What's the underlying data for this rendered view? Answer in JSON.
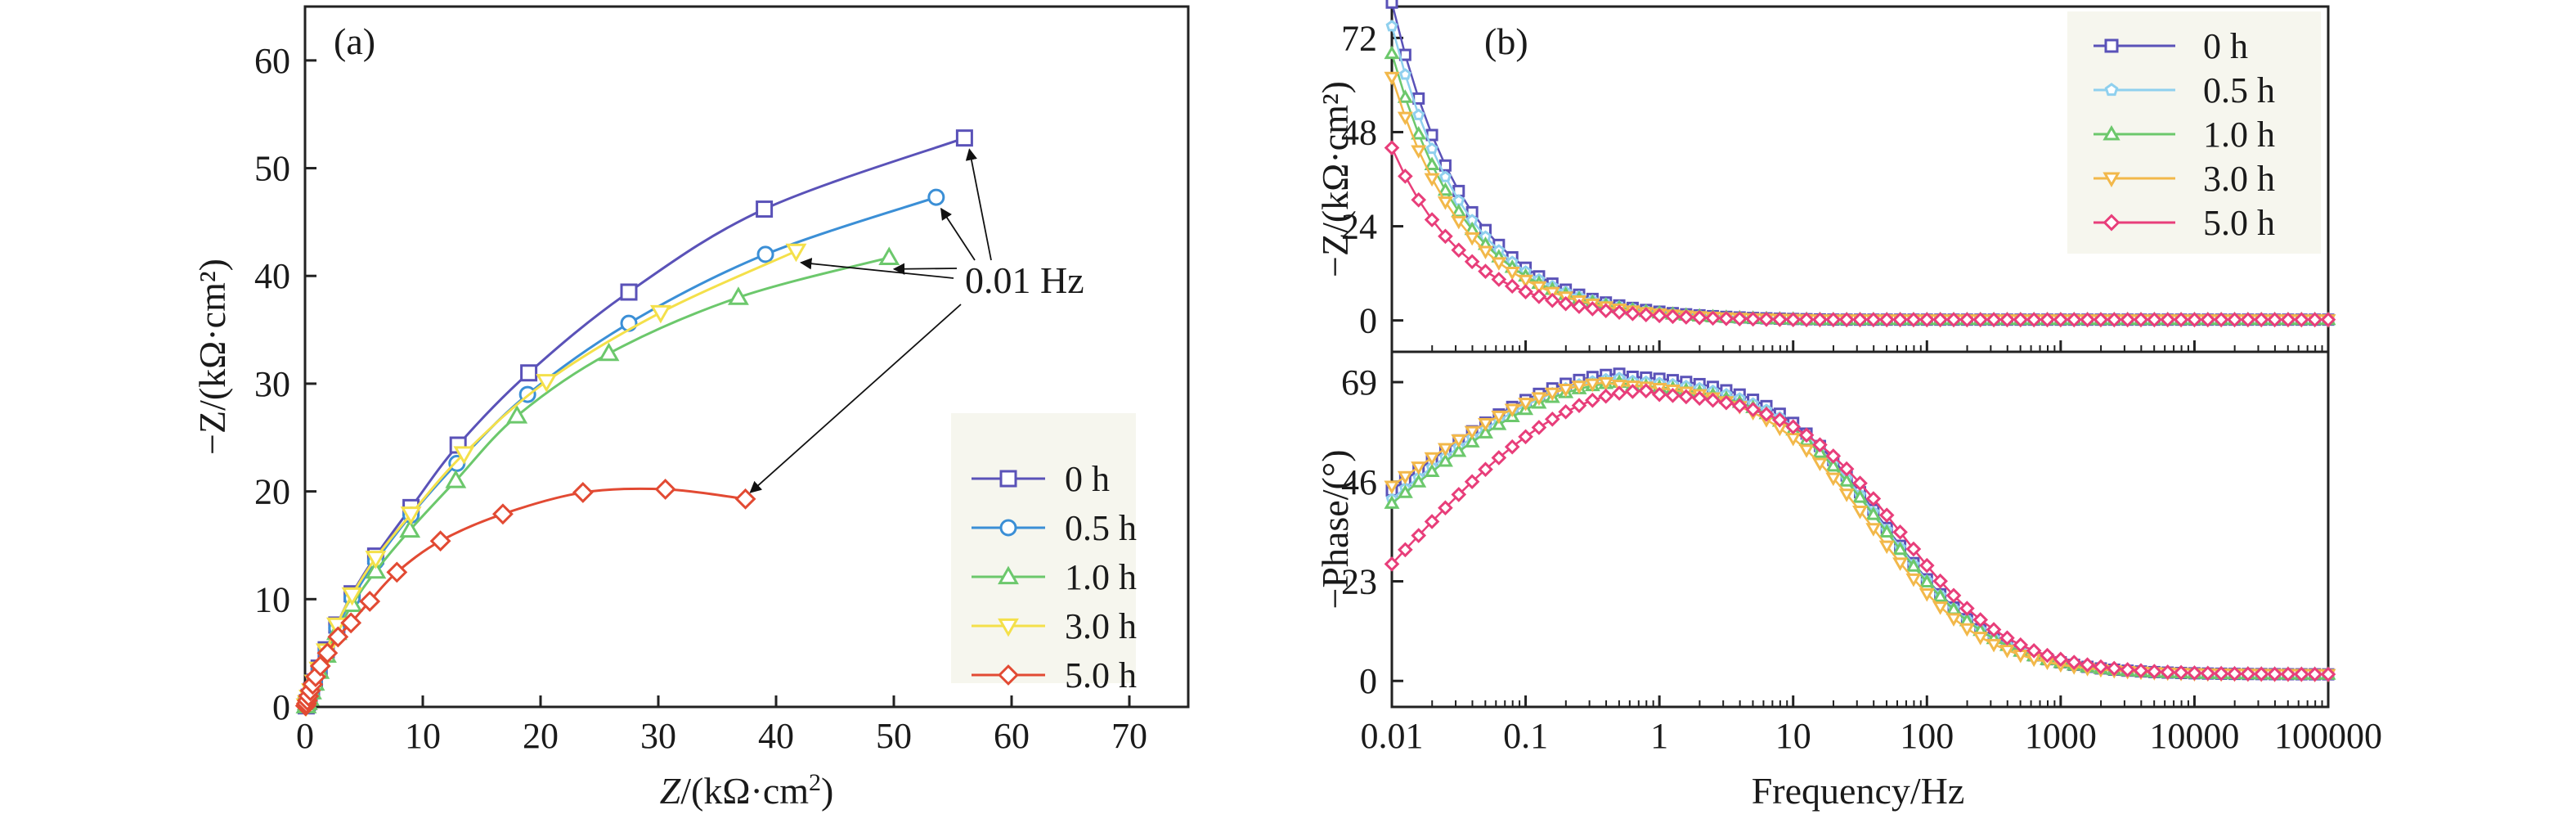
{
  "chart_data": [
    {
      "panel": "(a)",
      "type": "scatter",
      "xlabel_italic": "Z",
      "xlabel_rest": "/(kΩ·cm",
      "xlabel_sup": "2",
      "xlabel_end": ")",
      "ylabel": "−Z/(kΩ·cm²)",
      "xlim": [
        0,
        75
      ],
      "ylim": [
        0,
        65
      ],
      "xticks": [
        0,
        10,
        20,
        30,
        40,
        50,
        60,
        70
      ],
      "yticks": [
        0,
        10,
        20,
        30,
        40,
        50,
        60
      ],
      "annotation": {
        "text": "0.01 Hz"
      },
      "series": [
        {
          "name": "0 h",
          "color": "#5a52b8",
          "marker": "square",
          "points": [
            [
              0.1,
              0.1
            ],
            [
              0.2,
              0.4
            ],
            [
              0.35,
              0.9
            ],
            [
              0.55,
              1.5
            ],
            [
              0.8,
              2.3
            ],
            [
              1.2,
              3.6
            ],
            [
              1.8,
              5.3
            ],
            [
              2.7,
              7.6
            ],
            [
              4,
              10.5
            ],
            [
              6,
              14
            ],
            [
              9,
              18.5
            ],
            [
              13,
              24.3
            ],
            [
              19,
              31
            ],
            [
              27.5,
              38.5
            ],
            [
              39,
              46.2
            ],
            [
              56,
              52.8
            ]
          ]
        },
        {
          "name": "0.5 h",
          "color": "#3b8fd6",
          "marker": "circle",
          "points": [
            [
              0.1,
              0.1
            ],
            [
              0.2,
              0.4
            ],
            [
              0.35,
              0.9
            ],
            [
              0.55,
              1.5
            ],
            [
              0.8,
              2.3
            ],
            [
              1.2,
              3.5
            ],
            [
              1.8,
              5.1
            ],
            [
              2.7,
              7.3
            ],
            [
              4,
              10.1
            ],
            [
              6,
              13.5
            ],
            [
              9,
              17.8
            ],
            [
              12.9,
              22.6
            ],
            [
              18.9,
              29
            ],
            [
              27.5,
              35.6
            ],
            [
              39.1,
              42
            ],
            [
              53.6,
              47.3
            ]
          ]
        },
        {
          "name": "1.0 h",
          "color": "#6cc86c",
          "marker": "triangle-up",
          "points": [
            [
              0.1,
              0.1
            ],
            [
              0.2,
              0.4
            ],
            [
              0.35,
              0.8
            ],
            [
              0.55,
              1.4
            ],
            [
              0.8,
              2.2
            ],
            [
              1.2,
              3.3
            ],
            [
              1.8,
              4.8
            ],
            [
              2.7,
              6.9
            ],
            [
              4,
              9.5
            ],
            [
              6,
              12.6
            ],
            [
              8.9,
              16.4
            ],
            [
              12.8,
              21
            ],
            [
              18,
              27
            ],
            [
              25.8,
              32.8
            ],
            [
              36.8,
              38
            ],
            [
              49.6,
              41.7
            ]
          ]
        },
        {
          "name": "3.0 h",
          "color": "#f4e04a",
          "marker": "triangle-down",
          "points": [
            [
              0.1,
              0.1
            ],
            [
              0.2,
              0.4
            ],
            [
              0.35,
              0.9
            ],
            [
              0.55,
              1.5
            ],
            [
              0.8,
              2.3
            ],
            [
              1.2,
              3.5
            ],
            [
              1.8,
              5.2
            ],
            [
              2.7,
              7.6
            ],
            [
              4,
              10.4
            ],
            [
              6,
              13.8
            ],
            [
              9,
              17.9
            ],
            [
              13.5,
              23.5
            ],
            [
              20.5,
              30.2
            ],
            [
              30.2,
              36.6
            ],
            [
              41.7,
              42.3
            ]
          ]
        },
        {
          "name": "5.0 h",
          "color": "#e24a33",
          "marker": "diamond",
          "points": [
            [
              0.05,
              0.1
            ],
            [
              0.12,
              0.3
            ],
            [
              0.2,
              0.6
            ],
            [
              0.3,
              1
            ],
            [
              0.45,
              1.5
            ],
            [
              0.65,
              2.1
            ],
            [
              0.9,
              2.8
            ],
            [
              1.3,
              3.8
            ],
            [
              1.9,
              5
            ],
            [
              2.8,
              6.5
            ],
            [
              3.9,
              7.8
            ],
            [
              5.5,
              9.8
            ],
            [
              7.8,
              12.5
            ],
            [
              11.5,
              15.4
            ],
            [
              16.8,
              17.9
            ],
            [
              23.6,
              19.9
            ],
            [
              30.6,
              20.2
            ],
            [
              37.4,
              19.3
            ]
          ]
        }
      ]
    },
    {
      "panel": "(b)",
      "type": "line",
      "xlabel": "Frequency/Hz",
      "ylabel_top": "−Z/(kΩ·cm²)",
      "ylabel_bottom": "−Phase/(°)",
      "xscale": "log",
      "xlim": [
        0.01,
        100000
      ],
      "xticks": [
        0.01,
        0.1,
        1,
        10,
        100,
        1000,
        10000,
        100000
      ],
      "xtick_labels": [
        "0.01",
        "0.1",
        "1",
        "10",
        "100",
        "1000",
        "10000",
        "100000"
      ],
      "top_ylim": [
        -8,
        80
      ],
      "top_yticks": [
        0,
        24,
        48,
        72
      ],
      "bottom_ylim": [
        -6,
        76
      ],
      "bottom_yticks": [
        0,
        23,
        46,
        69
      ],
      "top_series": [
        {
          "name": "0 h",
          "color": "#5a52b8",
          "marker": "square",
          "z001": 81
        },
        {
          "name": "0.5 h",
          "color": "#8fd0ee",
          "marker": "pentagon",
          "z001": 75
        },
        {
          "name": "1.0 h",
          "color": "#6cc86c",
          "marker": "triangle-up",
          "z001": 68
        },
        {
          "name": "3.0 h",
          "color": "#f2b84a",
          "marker": "triangle-down",
          "z001": 62
        },
        {
          "name": "5.0 h",
          "color": "#e83e7a",
          "marker": "diamond",
          "z001": 44
        }
      ],
      "bottom_series": [
        {
          "name": "0 h",
          "phase001": 44,
          "peak": 71,
          "peak_f": 0.6
        },
        {
          "name": "0.5 h",
          "phase001": 42,
          "peak": 70,
          "peak_f": 0.6
        },
        {
          "name": "1.0 h",
          "phase001": 41,
          "peak": 69,
          "peak_f": 0.6
        },
        {
          "name": "3.0 h",
          "phase001": 45,
          "peak": 69,
          "peak_f": 0.5
        },
        {
          "name": "5.0 h",
          "phase001": 27,
          "peak": 67,
          "peak_f": 0.8
        }
      ]
    }
  ]
}
